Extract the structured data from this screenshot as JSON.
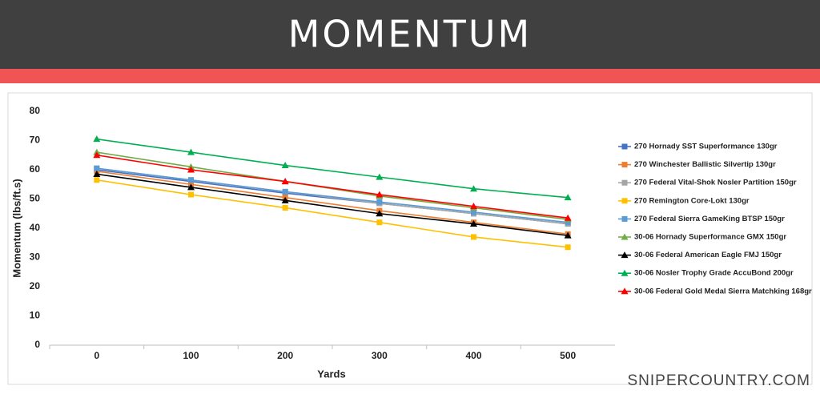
{
  "chart_data": {
    "type": "line",
    "title": "MOMENTUM",
    "x_label": "Yards",
    "y_label": "Momentum (lbs/ft.s)",
    "categories": [
      "0",
      "100",
      "200",
      "300",
      "400",
      "500"
    ],
    "ylim": [
      0,
      80
    ],
    "yticks": [
      0,
      10,
      20,
      30,
      40,
      50,
      60,
      70,
      80
    ],
    "grid": false,
    "legend": "right",
    "series": [
      {
        "name": "270 Hornady SST Superformance 130gr",
        "color": "#4472c4",
        "marker": "square",
        "values": [
          60,
          56,
          52,
          48.5,
          45,
          41.5
        ]
      },
      {
        "name": "270 Winchester Ballistic Silvertip 130gr",
        "color": "#ed7d31",
        "marker": "square",
        "values": [
          59.5,
          55,
          50.5,
          46,
          42,
          38
        ]
      },
      {
        "name": "270 Federal Vital-Shok Nosler Partition 150gr",
        "color": "#a5a5a5",
        "marker": "square",
        "values": [
          60.5,
          56.5,
          52.5,
          48.5,
          45,
          41.5
        ]
      },
      {
        "name": "270 Remington Core-Lokt 130gr",
        "color": "#ffc000",
        "marker": "square",
        "values": [
          56.5,
          51.5,
          47,
          42,
          37,
          33.5
        ]
      },
      {
        "name": "270 Federal Sierra GameKing BTSP 150gr",
        "color": "#5b9bd5",
        "marker": "square",
        "values": [
          60.5,
          56.5,
          52.5,
          49,
          45.5,
          42
        ]
      },
      {
        "name": "30-06 Hornady Superformance GMX 150gr",
        "color": "#70ad47",
        "marker": "triangle",
        "values": [
          66,
          61,
          56,
          51,
          47,
          43
        ]
      },
      {
        "name": "30-06 Federal American Eagle FMJ 150gr",
        "color": "#000000",
        "marker": "triangle",
        "values": [
          58.5,
          54,
          49.5,
          45,
          41.5,
          37.5
        ]
      },
      {
        "name": "30-06 Nosler Trophy Grade AccuBond 200gr",
        "color": "#00b050",
        "marker": "triangle",
        "values": [
          70.5,
          66,
          61.5,
          57.5,
          53.5,
          50.5
        ]
      },
      {
        "name": "30-06 Federal Gold Medal Sierra Matchking 168gr",
        "color": "#ff0000",
        "marker": "triangle",
        "values": [
          65,
          60,
          56,
          51.5,
          47.5,
          43.5
        ]
      }
    ]
  },
  "footer": "SNIPERCOUNTRY.COM"
}
